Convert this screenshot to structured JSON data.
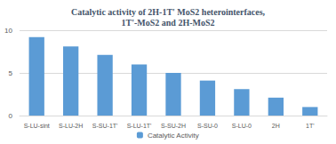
{
  "chart_data": {
    "type": "bar",
    "title": "Catalytic activity of 2H-1T' MoS2 heterointerfaces,\n1T'-MoS2 and 2H-MoS2",
    "categories": [
      "S-LU-sint",
      "S-LU-2H",
      "S-SU-1T'",
      "S-LU-1T'",
      "S-SU-2H",
      "S-SU-0",
      "S-LU-0",
      "2H",
      "1T'"
    ],
    "series": [
      {
        "name": "Catalytic Activity",
        "color": "#5b9bd5",
        "values": [
          9.2,
          8.1,
          7.1,
          6.0,
          5.0,
          4.1,
          3.1,
          2.1,
          1.0
        ]
      }
    ],
    "ylim": [
      0,
      10
    ],
    "yticks": [
      0,
      5,
      10
    ],
    "grid": true,
    "legend": "bottom"
  }
}
